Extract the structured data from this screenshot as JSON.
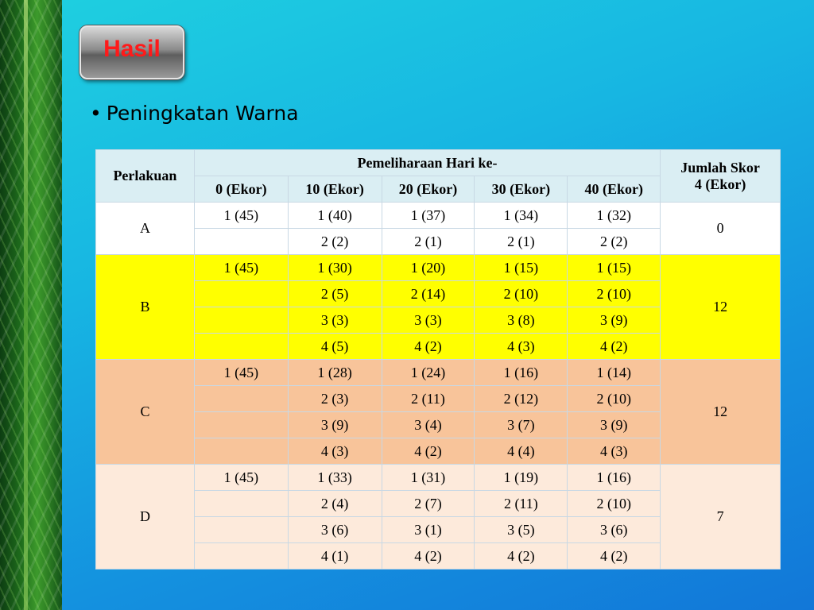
{
  "slide": {
    "title": "Hasil",
    "bullet": "Peningkatan Warna"
  },
  "table": {
    "header": {
      "perlakuan": "Perlakuan",
      "group": "Pemeliharaan Hari ke-",
      "jumlah_line1": "Jumlah Skor",
      "jumlah_line2": "4 (Ekor)",
      "days": [
        "0 (Ekor)",
        "10 (Ekor)",
        "20 (Ekor)",
        "30 (Ekor)",
        "40 (Ekor)"
      ]
    },
    "groups": [
      {
        "label": "A",
        "jumlah": "0",
        "rows": [
          [
            "1 (45)",
            "1 (40)",
            "1 (37)",
            "1 (34)",
            "1 (32)"
          ],
          [
            "",
            "2 (2)",
            "2 (1)",
            "2 (1)",
            "2 (2)"
          ]
        ]
      },
      {
        "label": "B",
        "jumlah": "12",
        "rows": [
          [
            "1 (45)",
            "1 (30)",
            "1 (20)",
            "1 (15)",
            "1 (15)"
          ],
          [
            "",
            "2 (5)",
            "2 (14)",
            "2 (10)",
            "2 (10)"
          ],
          [
            "",
            "3 (3)",
            "3 (3)",
            "3 (8)",
            "3 (9)"
          ],
          [
            "",
            "4 (5)",
            "4 (2)",
            "4 (3)",
            "4 (2)"
          ]
        ]
      },
      {
        "label": "C",
        "jumlah": "12",
        "rows": [
          [
            "1 (45)",
            "1 (28)",
            "1 (24)",
            "1 (16)",
            "1 (14)"
          ],
          [
            "",
            "2 (3)",
            "2 (11)",
            "2 (12)",
            "2 (10)"
          ],
          [
            "",
            "3 (9)",
            "3 (4)",
            "3 (7)",
            "3 (9)"
          ],
          [
            "",
            "4 (3)",
            "4 (2)",
            "4 (4)",
            "4 (3)"
          ]
        ]
      },
      {
        "label": "D",
        "jumlah": "7",
        "rows": [
          [
            "1 (45)",
            "1 (33)",
            "1 (31)",
            "1 (19)",
            "1 (16)"
          ],
          [
            "",
            "2 (4)",
            "2 (7)",
            "2 (11)",
            "2 (10)"
          ],
          [
            "",
            "3 (6)",
            "3 (1)",
            "3 (5)",
            "3 (6)"
          ],
          [
            "",
            "4 (1)",
            "4 (2)",
            "4 (2)",
            "4 (2)"
          ]
        ]
      }
    ]
  }
}
